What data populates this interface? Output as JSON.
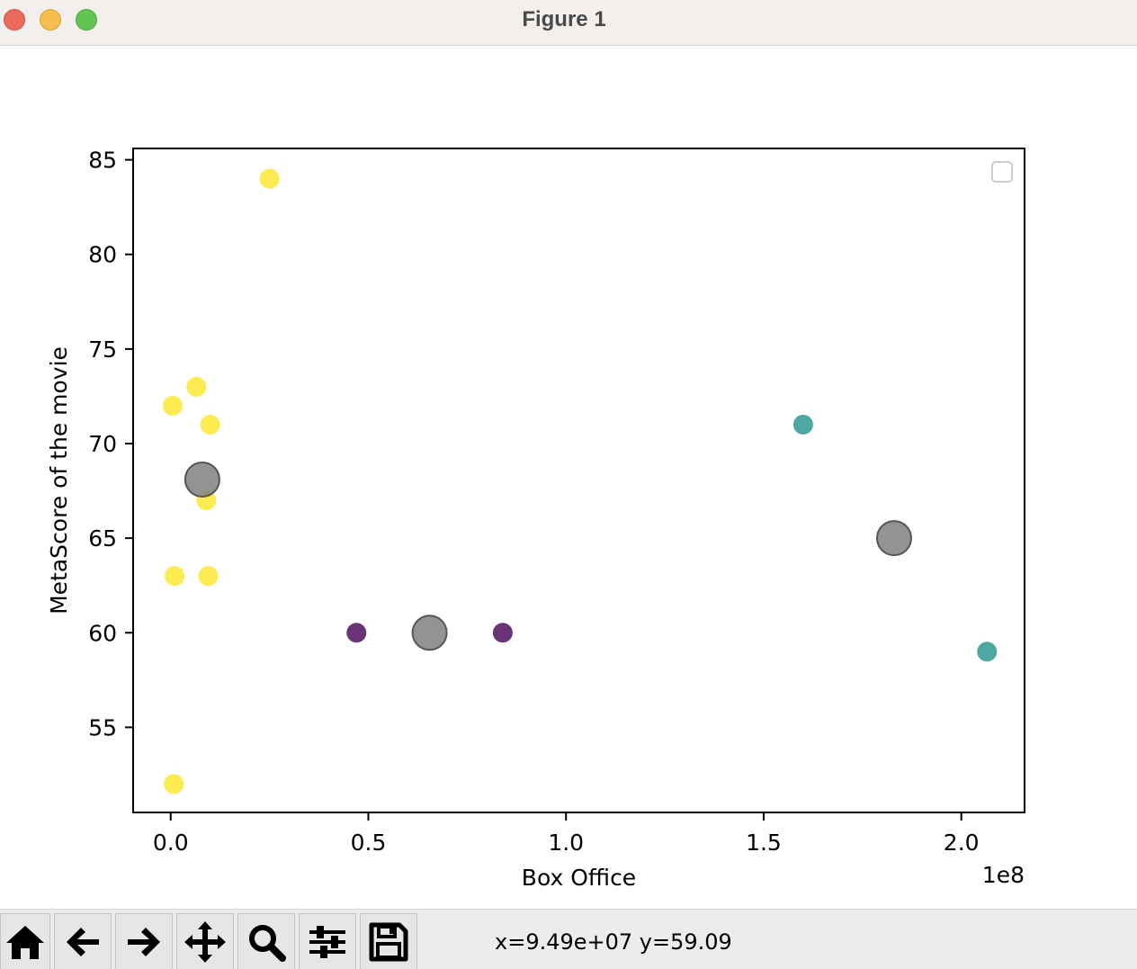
{
  "window": {
    "title": "Figure 1"
  },
  "toolbar": {
    "buttons": [
      {
        "name": "home",
        "icon": "home-icon"
      },
      {
        "name": "back",
        "icon": "arrow-left-icon"
      },
      {
        "name": "forward",
        "icon": "arrow-right-icon"
      },
      {
        "name": "pan",
        "icon": "move-icon"
      },
      {
        "name": "zoom",
        "icon": "magnifier-icon"
      },
      {
        "name": "configure-subplots",
        "icon": "sliders-icon"
      },
      {
        "name": "save",
        "icon": "floppy-disk-icon"
      }
    ],
    "coords": "x=9.49e+07 y=59.09"
  },
  "chart_data": {
    "type": "scatter",
    "title": "",
    "xlabel": "Box Office",
    "ylabel": "MetaScore of the movie",
    "x_offset_label": "1e8",
    "xlim": [
      -0.095,
      2.16
    ],
    "ylim": [
      50.5,
      85.6
    ],
    "x_unit_scale": 100000000,
    "xticks": [
      0.0,
      0.5,
      1.0,
      1.5,
      2.0
    ],
    "xtick_labels": [
      "0.0",
      "0.5",
      "1.0",
      "1.5",
      "2.0"
    ],
    "yticks": [
      55,
      60,
      65,
      70,
      75,
      80,
      85
    ],
    "ytick_labels": [
      "55",
      "60",
      "65",
      "70",
      "75",
      "80",
      "85"
    ],
    "grid": false,
    "legend": {
      "placement": "upper right",
      "entries": []
    },
    "series": [
      {
        "color": "#fde725",
        "points": [
          [
            0.25,
            84
          ],
          [
            0.065,
            73
          ],
          [
            0.005,
            72
          ],
          [
            0.1,
            71
          ],
          [
            0.09,
            67
          ],
          [
            0.01,
            63
          ],
          [
            0.095,
            63
          ],
          [
            0.008,
            52
          ]
        ]
      },
      {
        "color": "#440154",
        "points": [
          [
            0.47,
            60
          ],
          [
            0.84,
            60
          ]
        ]
      },
      {
        "color": "#21918c",
        "points": [
          [
            1.6,
            71
          ],
          [
            2.065,
            59
          ]
        ]
      }
    ],
    "centroids": {
      "color": "#808080",
      "points": [
        [
          0.08,
          68.1
        ],
        [
          0.655,
          60
        ],
        [
          1.83,
          65
        ]
      ]
    }
  }
}
